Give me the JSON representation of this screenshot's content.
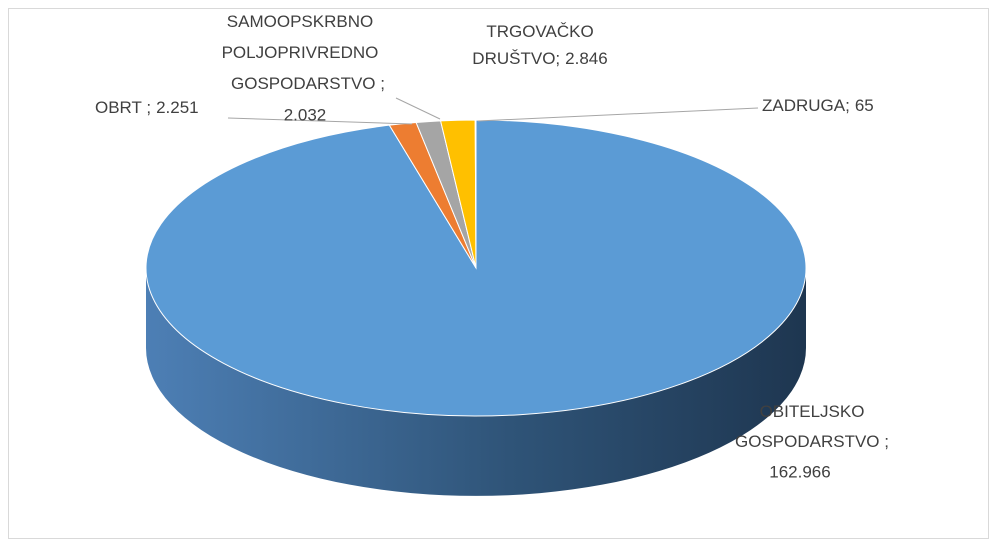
{
  "chart_data": {
    "type": "pie3d",
    "categories": [
      [
        "OBITELJSKO",
        "GOSPODARSTVO ;"
      ],
      [
        "OBRT ;"
      ],
      [
        "SAMOOPSKRBNO",
        "POLJOPRIVREDNO",
        "GOSPODARSTVO ;"
      ],
      [
        "TRGOVAČKO",
        "DRUŠTVO;"
      ],
      [
        "ZADRUGA;"
      ]
    ],
    "values": [
      162966,
      2251,
      2032,
      2846,
      65
    ],
    "value_labels": [
      "162.966",
      "2.251",
      "2.032",
      "2.846",
      "65"
    ],
    "colors": [
      "#5b9bd5",
      "#ed7d31",
      "#a5a5a5",
      "#ffc000",
      "#4472c4"
    ]
  }
}
